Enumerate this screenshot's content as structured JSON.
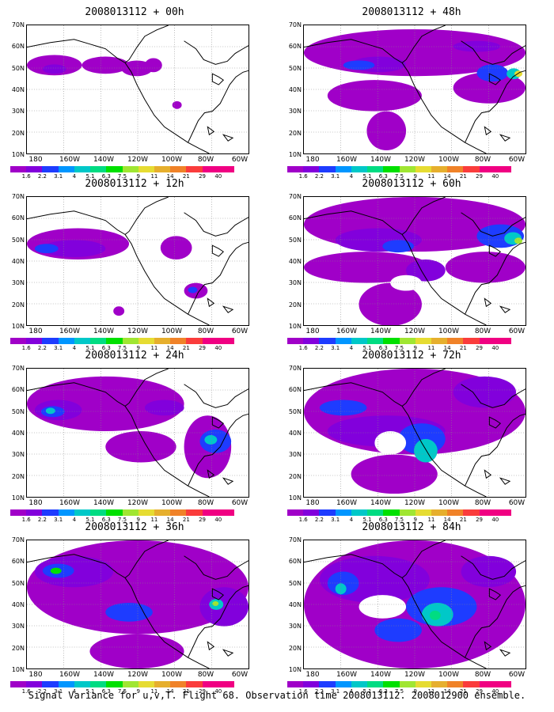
{
  "caption": "Signal Variance for u,v,T. Flight 68. Observation time 2008013112. 2008012900 ensemble.",
  "axes": {
    "lat_ticks": [
      "70N",
      "60N",
      "50N",
      "40N",
      "30N",
      "20N",
      "10N"
    ],
    "lon_ticks": [
      "180",
      "160W",
      "140W",
      "120W",
      "100W",
      "80W",
      "60W"
    ]
  },
  "colorbar": {
    "labels": [
      "1.6",
      "2.2",
      "3.1",
      "4",
      "5.1",
      "6.3",
      "7.5",
      "9",
      "11",
      "14",
      "21",
      "29",
      "40"
    ],
    "colors": [
      "#a000c8",
      "#8200dc",
      "#1e3cff",
      "#0096ff",
      "#00c8c8",
      "#00dc82",
      "#00e000",
      "#a0e632",
      "#e6dc32",
      "#e6af2d",
      "#f08228",
      "#fa3c3c",
      "#f00082"
    ]
  },
  "panels": [
    {
      "id": "p0",
      "title": "2008013112 + 00h",
      "col": 0,
      "row": 0
    },
    {
      "id": "p1",
      "title": "2008013112 + 48h",
      "col": 1,
      "row": 0
    },
    {
      "id": "p2",
      "title": "2008013112 + 12h",
      "col": 0,
      "row": 1
    },
    {
      "id": "p3",
      "title": "2008013112 + 60h",
      "col": 1,
      "row": 1
    },
    {
      "id": "p4",
      "title": "2008013112 + 24h",
      "col": 0,
      "row": 2
    },
    {
      "id": "p5",
      "title": "2008013112 + 72h",
      "col": 1,
      "row": 2
    },
    {
      "id": "p6",
      "title": "2008013112 + 36h",
      "col": 0,
      "row": 3
    },
    {
      "id": "p7",
      "title": "2008013112 + 84h",
      "col": 1,
      "row": 3
    }
  ]
}
